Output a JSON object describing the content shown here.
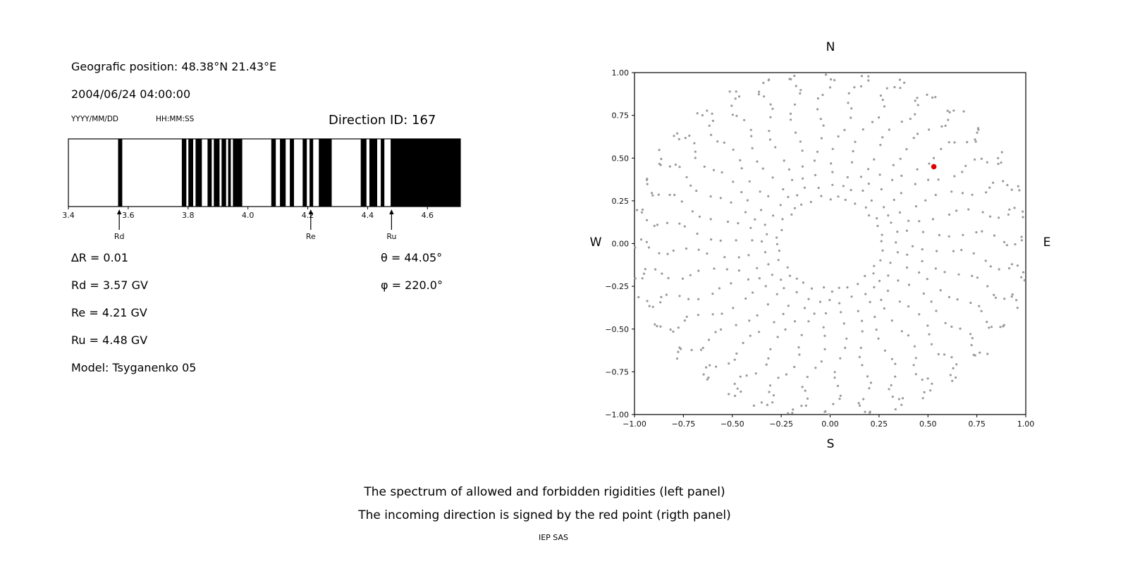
{
  "left_panel": {
    "geo_position": "Geografic position: 48.38°N 21.43°E",
    "datetime": "2004/06/24 04:00:00",
    "date_format": "YYYY/MM/DD",
    "time_format": "HH:MM:SS",
    "direction_id": "Direction ID: 167",
    "delta_r": "∆R = 0.01",
    "theta": "θ = 44.05°",
    "rd": "Rd = 3.57 GV",
    "phi": "φ = 220.0°",
    "re": "Re = 4.21 GV",
    "ru": "Ru = 4.48 GV",
    "model": "Model: Tsyganenko 05"
  },
  "caption": {
    "line1": "The spectrum of allowed and forbidden rigidities (left panel)",
    "line2": "The incoming direction is signed by the red point (rigth panel)",
    "credit": "IEP SAS"
  },
  "chart_data": [
    {
      "type": "bar",
      "name": "rigidity-spectrum-barcode",
      "description": "Barcode-style spectrum: black bands are forbidden rigidity intervals (GV), white gaps are allowed",
      "xlim": [
        3.4,
        4.71
      ],
      "xticks": [
        3.4,
        3.6,
        3.8,
        4.0,
        4.2,
        4.4,
        4.6
      ],
      "xtick_labels": [
        "3.4",
        "3.6",
        "3.8",
        "4.0",
        "4.2",
        "4.4",
        "4.6"
      ],
      "band_color": "#000000",
      "delta_r_gv": 0.01,
      "rd_gv": 3.57,
      "re_gv": 4.21,
      "ru_gv": 4.48,
      "model": "Tsyganenko 05",
      "direction_id": 167,
      "forbidden_bands_gv": [
        [
          3.566,
          3.58
        ],
        [
          3.779,
          3.794
        ],
        [
          3.801,
          3.817
        ],
        [
          3.825,
          3.846
        ],
        [
          3.865,
          3.879
        ],
        [
          3.886,
          3.905
        ],
        [
          3.912,
          3.927
        ],
        [
          3.934,
          3.943
        ],
        [
          3.95,
          3.981
        ],
        [
          4.078,
          4.093
        ],
        [
          4.107,
          4.126
        ],
        [
          4.14,
          4.154
        ],
        [
          4.183,
          4.197
        ],
        [
          4.206,
          4.218
        ],
        [
          4.237,
          4.28
        ],
        [
          4.377,
          4.396
        ],
        [
          4.406,
          4.432
        ],
        [
          4.444,
          4.456
        ],
        [
          4.477,
          4.714
        ]
      ],
      "markers": [
        {
          "label": "Rd",
          "x_gv": 3.57
        },
        {
          "label": "Re",
          "x_gv": 4.21
        },
        {
          "label": "Ru",
          "x_gv": 4.48
        }
      ]
    },
    {
      "type": "scatter",
      "name": "incoming-direction-map",
      "description": "Direction map: gray dot spokes every 10 degrees of azimuth; red point marks the incoming direction",
      "xlim": [
        -1.0,
        1.0
      ],
      "ylim": [
        -1.0,
        1.0
      ],
      "xticks": [
        -1.0,
        -0.75,
        -0.5,
        -0.25,
        0.0,
        0.25,
        0.5,
        0.75,
        1.0
      ],
      "xtick_labels": [
        "−1.00",
        "−0.75",
        "−0.50",
        "−0.25",
        "0.00",
        "0.25",
        "0.50",
        "0.75",
        "1.00"
      ],
      "yticks": [
        -1.0,
        -0.75,
        -0.5,
        -0.25,
        0.0,
        0.25,
        0.5,
        0.75,
        1.0
      ],
      "ytick_labels": [
        "−1.00",
        "−0.75",
        "−0.50",
        "−0.25",
        "0.00",
        "0.25",
        "0.50",
        "0.75",
        "1.00"
      ],
      "compass": {
        "top": "N",
        "bottom": "S",
        "left": "W",
        "right": "E"
      },
      "dot_color": "#9a9a9a",
      "theta_deg": 44.05,
      "phi_deg": 220.0,
      "spokes": {
        "count": 36,
        "azimuth_start_deg": 0,
        "azimuth_step_deg": 10,
        "spiral_deg": 15,
        "radii": [
          0.27,
          0.34,
          0.41,
          0.48,
          0.55,
          0.62,
          0.68,
          0.74,
          0.79,
          0.84,
          0.88,
          0.915,
          0.945,
          0.97,
          0.99,
          1.005,
          1.02
        ]
      },
      "red_point": {
        "x": 0.53,
        "y": 0.45,
        "color": "#dd0000"
      }
    }
  ]
}
